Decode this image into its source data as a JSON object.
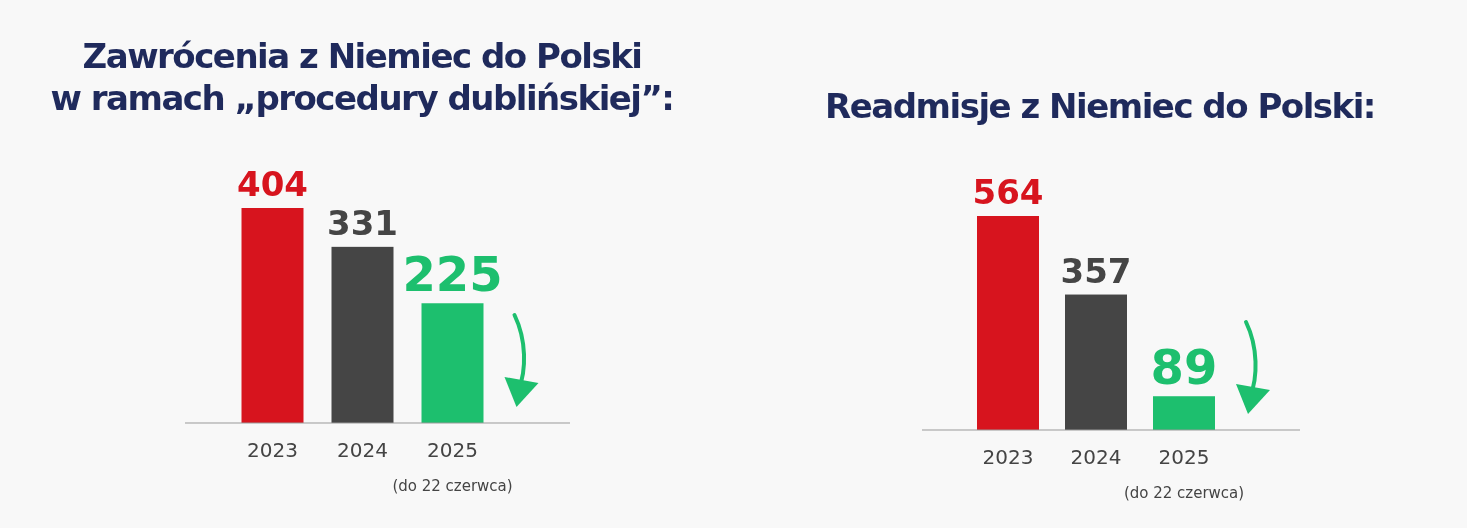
{
  "chart_data": [
    {
      "type": "bar",
      "title": "Zawrócenia z Niemiec do Polski\nw ramach „procedury dublińskiej”:",
      "categories": [
        "2023",
        "2024",
        "2025"
      ],
      "values": [
        404,
        331,
        225
      ],
      "colors": [
        "#d7141e",
        "#454545",
        "#1dbf6e"
      ],
      "data_labels": true,
      "annotations": [
        "(do 22 czerwca)"
      ]
    },
    {
      "type": "bar",
      "title": "Readmisje z Niemiec do Polski:",
      "categories": [
        "2023",
        "2024",
        "2025"
      ],
      "values": [
        564,
        357,
        89
      ],
      "colors": [
        "#d7141e",
        "#454545",
        "#1dbf6e"
      ],
      "data_labels": true,
      "annotations": [
        "(do 22 czerwca)"
      ]
    }
  ]
}
